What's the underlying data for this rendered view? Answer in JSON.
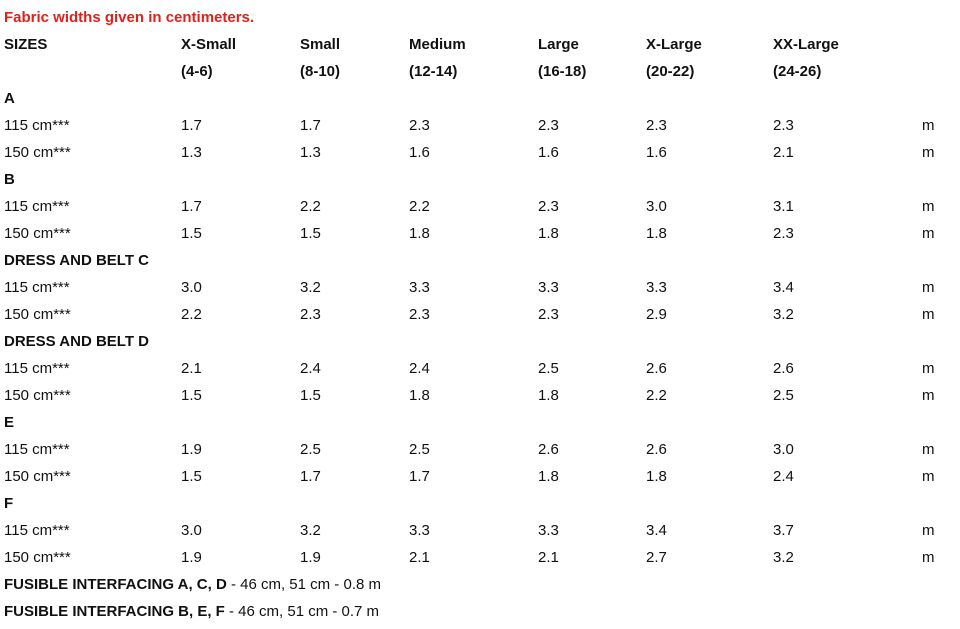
{
  "note": "Fabric widths given in centimeters.",
  "header": {
    "label": "SIZES",
    "sizes": [
      {
        "name": "X-Small",
        "range": "(4-6)"
      },
      {
        "name": "Small",
        "range": "(8-10)"
      },
      {
        "name": "Medium",
        "range": "(12-14)"
      },
      {
        "name": "Large",
        "range": "(16-18)"
      },
      {
        "name": "X-Large",
        "range": "(20-22)"
      },
      {
        "name": "XX-Large",
        "range": "(24-26)"
      }
    ]
  },
  "unit": "m",
  "sections": [
    {
      "title": "A",
      "rows": [
        {
          "width": "115 cm***",
          "values": [
            "1.7",
            "1.7",
            "2.3",
            "2.3",
            "2.3",
            "2.3"
          ]
        },
        {
          "width": "150 cm***",
          "values": [
            "1.3",
            "1.3",
            "1.6",
            "1.6",
            "1.6",
            "2.1"
          ]
        }
      ]
    },
    {
      "title": "B",
      "rows": [
        {
          "width": "115 cm***",
          "values": [
            "1.7",
            "2.2",
            "2.2",
            "2.3",
            "3.0",
            "3.1"
          ]
        },
        {
          "width": "150 cm***",
          "values": [
            "1.5",
            "1.5",
            "1.8",
            "1.8",
            "1.8",
            "2.3"
          ]
        }
      ]
    },
    {
      "title": "DRESS AND BELT C",
      "rows": [
        {
          "width": "115 cm***",
          "values": [
            "3.0",
            "3.2",
            "3.3",
            "3.3",
            "3.3",
            "3.4"
          ]
        },
        {
          "width": "150 cm***",
          "values": [
            "2.2",
            "2.3",
            "2.3",
            "2.3",
            "2.9",
            "3.2"
          ]
        }
      ]
    },
    {
      "title": "DRESS AND BELT D",
      "rows": [
        {
          "width": "115 cm***",
          "values": [
            "2.1",
            "2.4",
            "2.4",
            "2.5",
            "2.6",
            "2.6"
          ]
        },
        {
          "width": "150 cm***",
          "values": [
            "1.5",
            "1.5",
            "1.8",
            "1.8",
            "2.2",
            "2.5"
          ]
        }
      ]
    },
    {
      "title": "E",
      "rows": [
        {
          "width": "115 cm***",
          "values": [
            "1.9",
            "2.5",
            "2.5",
            "2.6",
            "2.6",
            "3.0"
          ]
        },
        {
          "width": "150 cm***",
          "values": [
            "1.5",
            "1.7",
            "1.7",
            "1.8",
            "1.8",
            "2.4"
          ]
        }
      ]
    },
    {
      "title": "F",
      "rows": [
        {
          "width": "115 cm***",
          "values": [
            "3.0",
            "3.2",
            "3.3",
            "3.3",
            "3.4",
            "3.7"
          ]
        },
        {
          "width": "150 cm***",
          "values": [
            "1.9",
            "1.9",
            "2.1",
            "2.1",
            "2.7",
            "3.2"
          ]
        }
      ]
    }
  ],
  "fusible": [
    {
      "label": "FUSIBLE INTERFACING A, C, D",
      "detail": " - 46 cm, 51 cm - 0.8 m"
    },
    {
      "label": "FUSIBLE INTERFACING B, E, F",
      "detail": " - 46 cm, 51 cm - 0.7 m"
    }
  ]
}
